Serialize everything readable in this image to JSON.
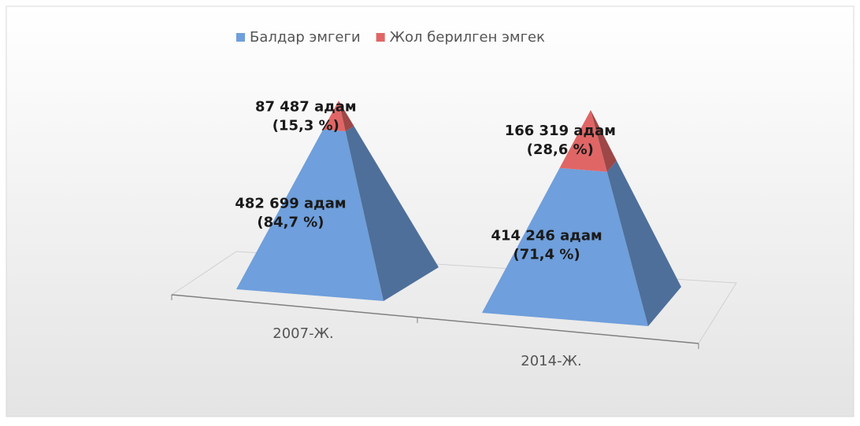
{
  "chart_data": {
    "type": "pyramid",
    "categories": [
      "2007-Ж.",
      "2014-Ж."
    ],
    "series": [
      {
        "name": "Балдар эмгеги",
        "color": "#6f9fdc",
        "values": [
          84.7,
          71.4
        ],
        "value_labels": [
          "(84,7 %)",
          "(71,4 %)"
        ],
        "counts": [
          482699,
          414246
        ],
        "count_labels": [
          "482 699 адам",
          "414 246 адам"
        ]
      },
      {
        "name": "Жол берилген эмгек",
        "color": "#e06666",
        "values": [
          15.3,
          28.6
        ],
        "value_labels": [
          "(15,3 %)",
          "(28,6 %)"
        ],
        "counts": [
          87487,
          166319
        ],
        "count_labels": [
          "87 487 адам",
          "166 319 адам"
        ]
      }
    ],
    "legend": "top"
  }
}
